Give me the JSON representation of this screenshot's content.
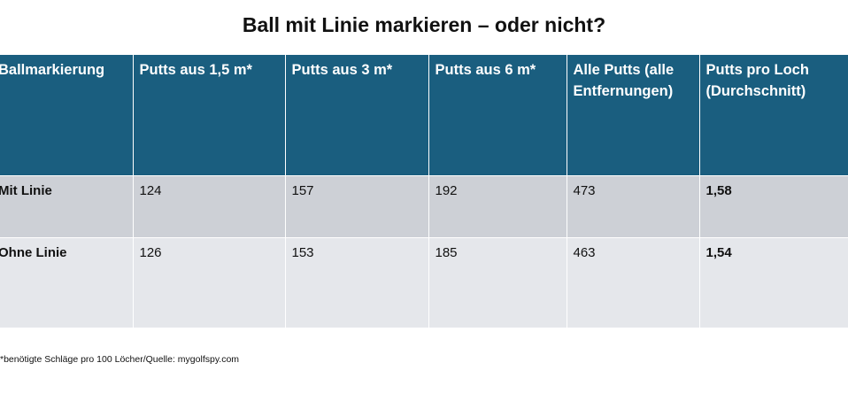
{
  "title": "Ball mit Linie markieren – oder nicht?",
  "table": {
    "headers": [
      "Ballmarkierung",
      "Putts aus 1,5 m*",
      "Putts aus 3 m*",
      "Putts aus 6 m*",
      "Alle Putts (alle Entfernungen)",
      "Putts pro Loch (Durchschnitt)"
    ],
    "rows": [
      [
        "Mit Linie",
        "124",
        "157",
        "192",
        "473",
        "1,58"
      ],
      [
        "Ohne Linie",
        "126",
        "153",
        "185",
        "463",
        "1,54"
      ]
    ]
  },
  "footnote": "*benötigte Schläge pro 100 Löcher/Quelle: mygolfspy.com",
  "colors": {
    "header_bg": "#1a5e7f",
    "row1_bg": "#cdd0d6",
    "row2_bg": "#e5e7eb"
  }
}
